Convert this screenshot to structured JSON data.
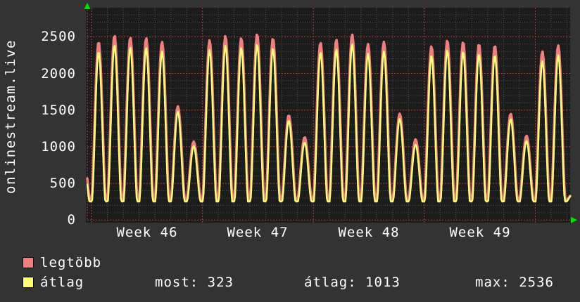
{
  "title": "onlinestream.live",
  "chart_data": {
    "type": "line",
    "title": "onlinestream.live",
    "x_tick_labels": [
      "Week 46",
      "Week 47",
      "Week 48",
      "Week 49"
    ],
    "y_ticks": [
      0,
      500,
      1000,
      1500,
      2000,
      2500
    ],
    "y_max_displayed": 2900,
    "y_minor_step": 100,
    "y_major_step": 500,
    "x_minor_unit": "day",
    "x_major_unit": "week",
    "grid": true,
    "legend_position": "bottom-left",
    "series": [
      {
        "name": "legtöbb",
        "color": "#f08080",
        "valley": 268,
        "end_value": 330,
        "daily_peaks": [
          1050,
          2430,
          2520,
          2490,
          2480,
          2430,
          1550,
          1070,
          2450,
          2510,
          2480,
          2536,
          2480,
          1430,
          1130,
          2420,
          2460,
          2530,
          2400,
          2430,
          1450,
          1100,
          2370,
          2450,
          2430,
          2400,
          2380,
          1450,
          1150,
          2300,
          2380
        ]
      },
      {
        "name": "átlag",
        "color": "#ffff78",
        "valley": 252,
        "end_value": 323,
        "daily_peaks": [
          990,
          2300,
          2390,
          2360,
          2350,
          2300,
          1480,
          1010,
          2320,
          2380,
          2350,
          2400,
          2350,
          1360,
          1060,
          2290,
          2330,
          2400,
          2270,
          2300,
          1380,
          1030,
          2240,
          2320,
          2300,
          2270,
          2250,
          1380,
          1080,
          2170,
          2250
        ]
      }
    ],
    "stats": {
      "most": 323,
      "atlag": 1013,
      "max": 2536
    }
  },
  "legend": {
    "max_label": "legtöbb",
    "avg_label": "átlag",
    "most_text": "most: 323",
    "avg_text": "átlag: 1013",
    "max_text": "max: 2536",
    "max_swatch_color": "#f08080",
    "avg_swatch_color": "#ffff78"
  },
  "colors": {
    "background": "#333333",
    "plot_background": "#1c1c1c",
    "minor_grid": "#4e4e4e",
    "major_grid": "#aa3f3f",
    "axis": "#aa3f3f",
    "arrow": "#00e400",
    "text": "#ffffff",
    "series_max": "#f08080",
    "series_avg": "#ffff78"
  }
}
